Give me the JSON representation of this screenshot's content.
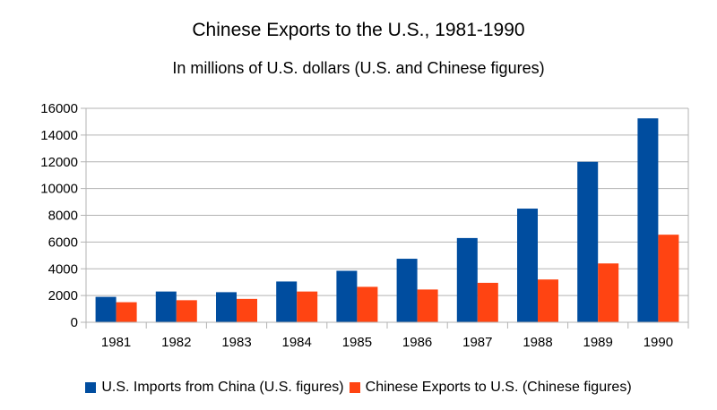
{
  "chart_data": {
    "type": "bar",
    "title": "Chinese Exports to the U.S., 1981-1990",
    "subtitle": "In millions of U.S. dollars (U.S. and Chinese figures)",
    "xlabel": "",
    "ylabel": "",
    "categories": [
      "1981",
      "1982",
      "1983",
      "1984",
      "1985",
      "1986",
      "1987",
      "1988",
      "1989",
      "1990"
    ],
    "series": [
      {
        "name": "U.S. Imports from China (U.S. figures)",
        "color": "#004d9f",
        "values": [
          1900,
          2300,
          2250,
          3050,
          3850,
          4750,
          6300,
          8500,
          12000,
          15250
        ]
      },
      {
        "name": "Chinese Exports to U.S. (Chinese figures)",
        "color": "#ff4412",
        "values": [
          1500,
          1650,
          1750,
          2300,
          2650,
          2450,
          2950,
          3200,
          4400,
          6550
        ]
      }
    ],
    "ylim": [
      0,
      16000
    ],
    "yticks": [
      "0",
      "2000",
      "4000",
      "6000",
      "8000",
      "10000",
      "12000",
      "14000",
      "16000"
    ],
    "grid": true,
    "legend_position": "bottom"
  }
}
